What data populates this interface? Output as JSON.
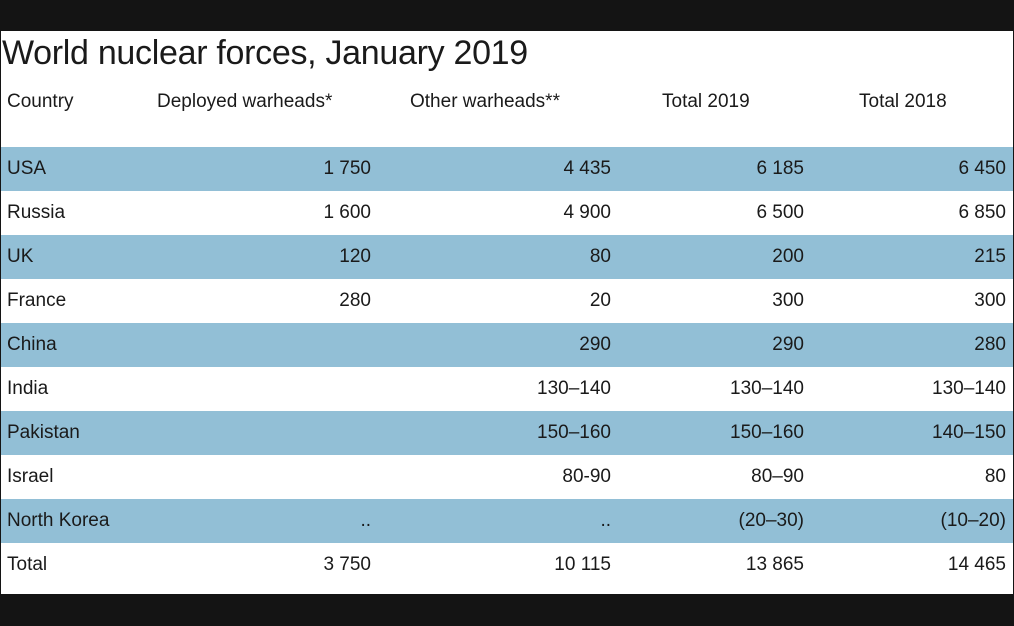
{
  "chart_data": {
    "type": "table",
    "title": "World nuclear forces, January 2019",
    "columns": [
      "Country",
      "Deployed warheads*",
      "Other warheads**",
      "Total 2019",
      "Total 2018"
    ],
    "rows": [
      {
        "country": "USA",
        "deployed": "1 750",
        "other": "4 435",
        "total_2019": "6 185",
        "total_2018": "6 450"
      },
      {
        "country": "Russia",
        "deployed": "1 600",
        "other": "4 900",
        "total_2019": "6 500",
        "total_2018": "6 850"
      },
      {
        "country": "UK",
        "deployed": "120",
        "other": "80",
        "total_2019": "200",
        "total_2018": "215"
      },
      {
        "country": "France",
        "deployed": "280",
        "other": "20",
        "total_2019": "300",
        "total_2018": "300"
      },
      {
        "country": "China",
        "deployed": "",
        "other": "290",
        "total_2019": "290",
        "total_2018": "280"
      },
      {
        "country": "India",
        "deployed": "",
        "other": "130–140",
        "total_2019": "130–140",
        "total_2018": "130–140"
      },
      {
        "country": "Pakistan",
        "deployed": "",
        "other": "150–160",
        "total_2019": "150–160",
        "total_2018": "140–150"
      },
      {
        "country": "Israel",
        "deployed": "",
        "other": "80-90",
        "total_2019": "80–90",
        "total_2018": "80"
      },
      {
        "country": "North Korea",
        "deployed": "..",
        "other": "..",
        "total_2019": "(20–30)",
        "total_2018": "(10–20)"
      },
      {
        "country": "Total",
        "deployed": "3 750",
        "other": "10 115",
        "total_2019": "13 865",
        "total_2018": "14 465"
      }
    ]
  },
  "colors": {
    "row_shade": "#92bfd6",
    "background": "#ffffff",
    "frame": "#141414",
    "text": "#1a1a1a"
  }
}
